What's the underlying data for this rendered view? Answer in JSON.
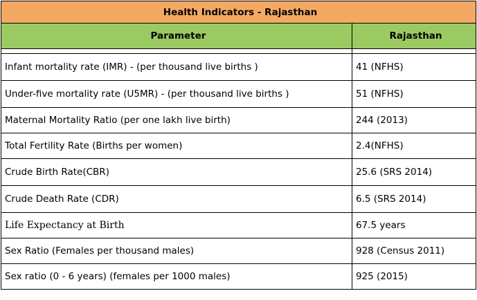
{
  "table": {
    "title": "Health Indicators - Rajasthan",
    "headers": [
      "Parameter",
      "Rajasthan"
    ],
    "rows": [
      {
        "parameter": "Infant mortality rate (IMR) - (per thousand live births )",
        "value": "41 (NFHS)"
      },
      {
        "parameter": "Under-five mortality rate (U5MR) - (per thousand live births )",
        "value": "51 (NFHS)"
      },
      {
        "parameter": "Maternal Mortality Ratio (per one lakh live birth)",
        "value": "244 (2013)"
      },
      {
        "parameter": "Total Fertility Rate (Births per women)",
        "value": "2.4(NFHS)"
      },
      {
        "parameter": "Crude Birth Rate(CBR)",
        "value": "25.6 (SRS 2014)"
      },
      {
        "parameter": "Crude Death Rate (CDR)",
        "value": "6.5 (SRS 2014)"
      },
      {
        "parameter": "Life Expectancy at Birth",
        "value": "67.5 years"
      },
      {
        "parameter": "Sex Ratio (Females per thousand males)",
        "value": "928 (Census 2011)"
      },
      {
        "parameter": "Sex ratio (0 - 6 years) (females per 1000 males)",
        "value": "925 (2015)"
      }
    ]
  },
  "colors": {
    "title_background": "#f4a962",
    "header_background": "#9bca62",
    "border": "#000000"
  }
}
